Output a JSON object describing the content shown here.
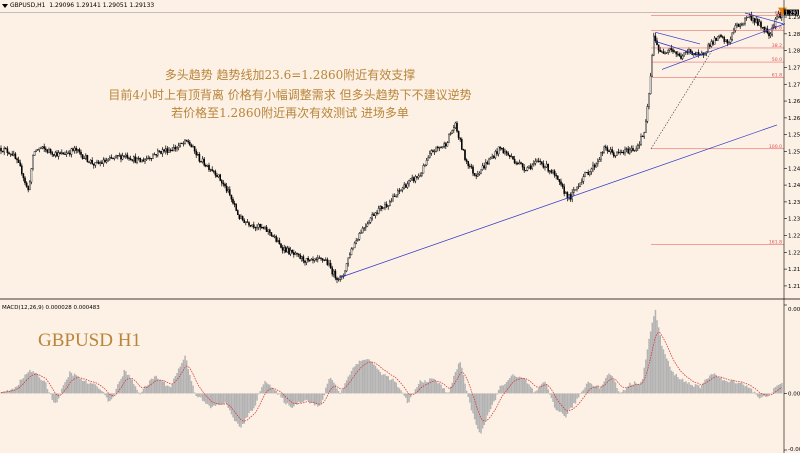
{
  "window": {
    "title": "GBPUSD,H1",
    "quote": "1.29096 1.29141 1.29051 1.29133",
    "macd_label": "MACD(12,26,9) 0.000028 0.000483"
  },
  "annotation": {
    "line1": "多头趋势 趋势线加23.6=1.2860附近有效支撑",
    "line2": "目前4小时上有顶背离 价格有小幅调整需求 但多头趋势下不建议逆势",
    "line3": "若价格至1.2860附近再次有效测试 进场多单"
  },
  "watermark": "GBPUSD H1",
  "colors": {
    "background": "#fdf0e4",
    "candle": "#000000",
    "trendline": "#2430c8",
    "fib": "#e05050",
    "macd_hist": "#b3b3b3",
    "signal": "#d03030",
    "marker": "#e8840e"
  },
  "chart_data": [
    {
      "type": "candlestick",
      "title": "GBPUSD,H1",
      "ylim": [
        1.207,
        1.2915
      ],
      "y_ticks": [
        "1.290",
        "1.285",
        "1.280",
        "1.275",
        "1.270",
        "1.265",
        "1.260",
        "1.255",
        "1.250",
        "1.245",
        "1.240",
        "1.235",
        "1.230",
        "1.225",
        "1.220",
        "1.215",
        "1.210"
      ],
      "current_price": "1.29133",
      "path_anchors": [
        [
          0,
          1.251
        ],
        [
          12,
          1.2495
        ],
        [
          22,
          1.244
        ],
        [
          28,
          1.238
        ],
        [
          34,
          1.25
        ],
        [
          40,
          1.251
        ],
        [
          60,
          1.249
        ],
        [
          75,
          1.2505
        ],
        [
          95,
          1.246
        ],
        [
          110,
          1.2475
        ],
        [
          125,
          1.249
        ],
        [
          140,
          1.247
        ],
        [
          160,
          1.25
        ],
        [
          175,
          1.251
        ],
        [
          188,
          1.253
        ],
        [
          200,
          1.2475
        ],
        [
          215,
          1.244
        ],
        [
          228,
          1.238
        ],
        [
          240,
          1.23
        ],
        [
          255,
          1.228
        ],
        [
          270,
          1.226
        ],
        [
          280,
          1.222
        ],
        [
          295,
          1.219
        ],
        [
          310,
          1.217
        ],
        [
          325,
          1.218
        ],
        [
          335,
          1.213
        ],
        [
          342,
          1.212
        ],
        [
          350,
          1.22
        ],
        [
          360,
          1.226
        ],
        [
          375,
          1.232
        ],
        [
          390,
          1.235
        ],
        [
          405,
          1.24
        ],
        [
          420,
          1.243
        ],
        [
          432,
          1.25
        ],
        [
          445,
          1.252
        ],
        [
          455,
          1.258
        ],
        [
          465,
          1.248
        ],
        [
          475,
          1.243
        ],
        [
          485,
          1.246
        ],
        [
          500,
          1.251
        ],
        [
          512,
          1.248
        ],
        [
          525,
          1.245
        ],
        [
          540,
          1.247
        ],
        [
          552,
          1.244
        ],
        [
          562,
          1.239
        ],
        [
          570,
          1.236
        ],
        [
          582,
          1.242
        ],
        [
          595,
          1.246
        ],
        [
          605,
          1.251
        ],
        [
          615,
          1.249
        ],
        [
          625,
          1.25
        ],
        [
          636,
          1.251
        ],
        [
          645,
          1.256
        ],
        [
          650,
          1.27
        ],
        [
          654,
          1.285
        ],
        [
          660,
          1.279
        ],
        [
          670,
          1.281
        ],
        [
          680,
          1.278
        ],
        [
          690,
          1.28
        ],
        [
          700,
          1.278
        ],
        [
          710,
          1.282
        ],
        [
          720,
          1.284
        ],
        [
          728,
          1.282
        ],
        [
          735,
          1.287
        ],
        [
          742,
          1.288
        ],
        [
          748,
          1.2905
        ],
        [
          755,
          1.289
        ],
        [
          762,
          1.287
        ],
        [
          770,
          1.285
        ],
        [
          776,
          1.29
        ],
        [
          782,
          1.291
        ]
      ],
      "trendlines": [
        {
          "x1": 340,
          "y1": 1.2125,
          "x2": 777,
          "y2": 1.2579
        },
        {
          "x1": 662,
          "y1": 1.2744,
          "x2": 785,
          "y2": 1.288
        },
        {
          "x1": 655,
          "y1": 1.2855,
          "x2": 700,
          "y2": 1.282
        },
        {
          "x1": 655,
          "y1": 1.2828,
          "x2": 700,
          "y2": 1.2786
        },
        {
          "x1": 745,
          "y1": 1.2912,
          "x2": 783,
          "y2": 1.288
        }
      ],
      "dotted": {
        "x1": 651,
        "y1": 1.2508,
        "x2": 712,
        "y2": 1.28
      },
      "fibonacci": [
        {
          "label": "0.0",
          "price": 1.2904
        },
        {
          "label": "23.6",
          "price": 1.286
        },
        {
          "label": "38.2",
          "price": 1.2808
        },
        {
          "label": "50.0",
          "price": 1.2766
        },
        {
          "label": "61.8",
          "price": 1.272
        },
        {
          "label": "100.0",
          "price": 1.2508
        },
        {
          "label": "161.8",
          "price": 1.2223
        }
      ]
    },
    {
      "type": "bar",
      "title": "MACD(12,26,9)",
      "ylim": [
        -0.0048,
        0.0075
      ],
      "y_ticks": [
        "0.0075",
        "0.00",
        "-0.0048"
      ],
      "hist_anchors": [
        [
          0,
          0.0
        ],
        [
          15,
          0.0005
        ],
        [
          30,
          0.002
        ],
        [
          45,
          0.001
        ],
        [
          55,
          -0.001
        ],
        [
          70,
          0.0018
        ],
        [
          85,
          0.001
        ],
        [
          100,
          0.0005
        ],
        [
          110,
          -0.0008
        ],
        [
          125,
          0.002
        ],
        [
          140,
          0.0
        ],
        [
          155,
          0.0015
        ],
        [
          170,
          0.0005
        ],
        [
          185,
          0.0032
        ],
        [
          195,
          0.0
        ],
        [
          210,
          -0.0012
        ],
        [
          225,
          -0.0008
        ],
        [
          240,
          -0.003
        ],
        [
          255,
          -0.001
        ],
        [
          265,
          0.0012
        ],
        [
          275,
          0.0002
        ],
        [
          290,
          -0.0012
        ],
        [
          305,
          -0.0005
        ],
        [
          320,
          -0.0012
        ],
        [
          330,
          0.0015
        ],
        [
          340,
          0.0
        ],
        [
          355,
          0.0025
        ],
        [
          368,
          0.003
        ],
        [
          380,
          0.0018
        ],
        [
          395,
          0.001
        ],
        [
          408,
          -0.0008
        ],
        [
          420,
          0.001
        ],
        [
          435,
          0.0012
        ],
        [
          448,
          0.0
        ],
        [
          460,
          0.0028
        ],
        [
          470,
          -0.001
        ],
        [
          480,
          -0.0035
        ],
        [
          490,
          -0.0015
        ],
        [
          500,
          0.0005
        ],
        [
          512,
          0.0015
        ],
        [
          525,
          0.0012
        ],
        [
          535,
          0.0
        ],
        [
          545,
          0.001
        ],
        [
          555,
          -0.0012
        ],
        [
          565,
          -0.002
        ],
        [
          575,
          -0.0008
        ],
        [
          588,
          0.001
        ],
        [
          600,
          0.0005
        ],
        [
          610,
          0.0018
        ],
        [
          620,
          0.0
        ],
        [
          630,
          0.0008
        ],
        [
          642,
          0.001
        ],
        [
          650,
          0.005
        ],
        [
          655,
          0.0072
        ],
        [
          662,
          0.004
        ],
        [
          672,
          0.0018
        ],
        [
          685,
          0.001
        ],
        [
          700,
          0.0005
        ],
        [
          712,
          0.0018
        ],
        [
          725,
          0.001
        ],
        [
          738,
          0.001
        ],
        [
          750,
          0.0005
        ],
        [
          760,
          -0.0005
        ],
        [
          770,
          0.0
        ],
        [
          780,
          0.0008
        ]
      ]
    }
  ]
}
